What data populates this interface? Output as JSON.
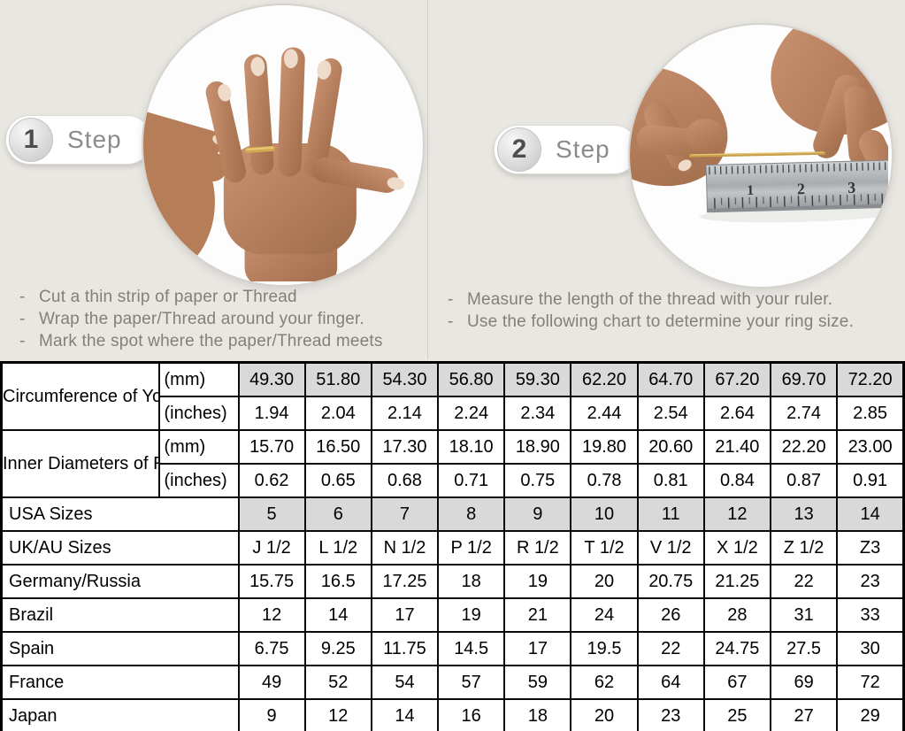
{
  "bullet_char": "-",
  "colors": {
    "top_background": "#e9e7e2",
    "cell_gray": "#d9d9d9",
    "table_border": "#000000",
    "thread_gold": "#c8a04a",
    "badge_text": "#8d8b88"
  },
  "steps": [
    {
      "number": "1",
      "label": "Step",
      "instructions": [
        "Cut a thin strip of paper or Thread",
        "Wrap the paper/Thread around your finger.",
        "Mark the spot where the paper/Thread meets"
      ]
    },
    {
      "number": "2",
      "label": "Step",
      "instructions": [
        "Measure the length of the thread with your ruler.",
        "Use the following chart to determine your ring size."
      ]
    }
  ],
  "photos": {
    "ruler_marks": [
      "1",
      "2",
      "3"
    ]
  },
  "table": {
    "rows": [
      {
        "label": "Circumference of Your Finger",
        "label_rowspan": 2,
        "label_align": "center",
        "unit": "(mm)",
        "gray": true,
        "values": [
          "49.30",
          "51.80",
          "54.30",
          "56.80",
          "59.30",
          "62.20",
          "64.70",
          "67.20",
          "69.70",
          "72.20"
        ]
      },
      {
        "unit": "(inches)",
        "values": [
          "1.94",
          "2.04",
          "2.14",
          "2.24",
          "2.34",
          "2.44",
          "2.54",
          "2.64",
          "2.74",
          "2.85"
        ]
      },
      {
        "label": "Inner Diameters of Rings",
        "label_rowspan": 2,
        "label_align": "center",
        "unit": "(mm)",
        "values": [
          "15.70",
          "16.50",
          "17.30",
          "18.10",
          "18.90",
          "19.80",
          "20.60",
          "21.40",
          "22.20",
          "23.00"
        ]
      },
      {
        "unit": "(inches)",
        "values": [
          "0.62",
          "0.65",
          "0.68",
          "0.71",
          "0.75",
          "0.78",
          "0.81",
          "0.84",
          "0.87",
          "0.91"
        ]
      },
      {
        "label": "USA Sizes",
        "label_colspan": 2,
        "gray": true,
        "values": [
          "5",
          "6",
          "7",
          "8",
          "9",
          "10",
          "11",
          "12",
          "13",
          "14"
        ]
      },
      {
        "label": "UK/AU Sizes",
        "label_colspan": 2,
        "values": [
          "J 1/2",
          "L 1/2",
          "N 1/2",
          "P 1/2",
          "R 1/2",
          "T 1/2",
          "V 1/2",
          "X 1/2",
          "Z 1/2",
          "Z3"
        ]
      },
      {
        "label": "Germany/Russia",
        "label_colspan": 2,
        "values": [
          "15.75",
          "16.5",
          "17.25",
          "18",
          "19",
          "20",
          "20.75",
          "21.25",
          "22",
          "23"
        ]
      },
      {
        "label": "Brazil",
        "label_colspan": 2,
        "values": [
          "12",
          "14",
          "17",
          "19",
          "21",
          "24",
          "26",
          "28",
          "31",
          "33"
        ]
      },
      {
        "label": "Spain",
        "label_colspan": 2,
        "values": [
          "6.75",
          "9.25",
          "11.75",
          "14.5",
          "17",
          "19.5",
          "22",
          "24.75",
          "27.5",
          "30"
        ]
      },
      {
        "label": "France",
        "label_colspan": 2,
        "values": [
          "49",
          "52",
          "54",
          "57",
          "59",
          "62",
          "64",
          "67",
          "69",
          "72"
        ]
      },
      {
        "label": "Japan",
        "label_colspan": 2,
        "values": [
          "9",
          "12",
          "14",
          "16",
          "18",
          "20",
          "23",
          "25",
          "27",
          "29"
        ]
      }
    ]
  }
}
